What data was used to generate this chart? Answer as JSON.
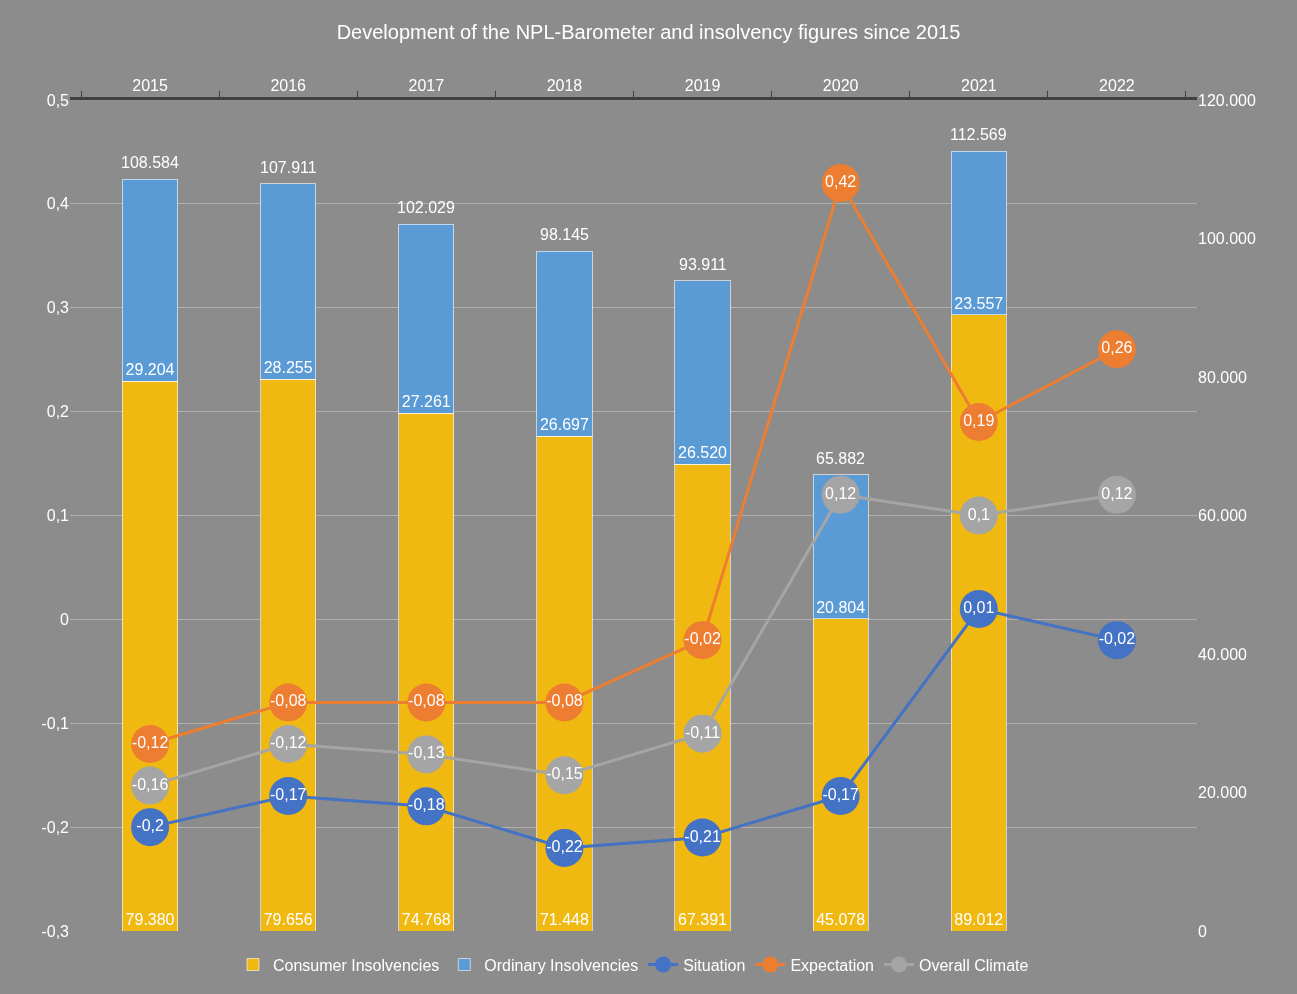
{
  "chart_data": {
    "type": "bar",
    "title": "Development of the NPL-Barometer and insolvency figures since 2015",
    "categories": [
      "2015",
      "2016",
      "2017",
      "2018",
      "2019",
      "2020",
      "2021",
      "2022"
    ],
    "stacked": true,
    "series": [
      {
        "name": "Consumer Insolvencies",
        "axis": "y2",
        "color": "#f0b912",
        "values": [
          79380,
          79656,
          74768,
          71448,
          67391,
          45078,
          89012,
          null
        ],
        "value_labels": [
          "79.380",
          "79.656",
          "74.768",
          "71.448",
          "67.391",
          "45.078",
          "89.012",
          null
        ]
      },
      {
        "name": "Ordinary Insolvencies",
        "axis": "y2",
        "color": "#5b9bd5",
        "values": [
          29204,
          28255,
          27261,
          26697,
          26520,
          20804,
          23557,
          null
        ],
        "value_labels": [
          "29.204",
          "28.255",
          "27.261",
          "26.697",
          "26.520",
          "20.804",
          "23.557",
          null
        ]
      },
      {
        "name": "Situation",
        "type": "line",
        "color": "#4472c4",
        "values": [
          -0.2,
          -0.17,
          -0.18,
          -0.22,
          -0.21,
          -0.17,
          0.01,
          -0.02
        ],
        "value_labels": [
          "-0,2",
          "-0,17",
          "-0,18",
          "-0,22",
          "-0,21",
          "-0,17",
          "0,01",
          "-0,02"
        ]
      },
      {
        "name": "Expectation",
        "type": "line",
        "color": "#ed7d31",
        "values": [
          -0.12,
          -0.08,
          -0.08,
          -0.08,
          -0.02,
          0.42,
          0.19,
          0.26
        ],
        "value_labels": [
          "-0,12",
          "-0,08",
          "-0,08",
          "-0,08",
          "-0,02",
          "0,42",
          "0,19",
          "0,26"
        ]
      },
      {
        "name": "Overall Climate",
        "type": "line",
        "color": "#a5a5a5",
        "values": [
          -0.16,
          -0.12,
          -0.13,
          -0.15,
          -0.11,
          0.12,
          0.1,
          0.12
        ],
        "value_labels": [
          "-0,16",
          "-0,12",
          "-0,13",
          "-0,15",
          "-0,11",
          "0,12",
          "0,1",
          "0,12"
        ]
      }
    ],
    "totals": [
      "108.584",
      "107.911",
      "102.029",
      "98.145",
      "93.911",
      "65.882",
      "112.569",
      null
    ],
    "ylim": [
      -0.3,
      0.5
    ],
    "yticks": [
      {
        "value": -0.3,
        "label": "-0,3"
      },
      {
        "value": -0.2,
        "label": "-0,2"
      },
      {
        "value": -0.1,
        "label": "-0,1"
      },
      0,
      {
        "value": 0.1,
        "label": "0,1"
      },
      {
        "value": 0.2,
        "label": "0,2"
      },
      {
        "value": 0.3,
        "label": "0,3"
      },
      {
        "value": 0.4,
        "label": "0,4"
      },
      {
        "value": 0.5,
        "label": "0,5"
      }
    ],
    "y2lim": [
      0,
      120000
    ],
    "y2ticks": [
      0,
      {
        "value": 20000,
        "label": "20.000"
      },
      {
        "value": 40000,
        "label": "40.000"
      },
      {
        "value": 60000,
        "label": "60.000"
      },
      {
        "value": 80000,
        "label": "80.000"
      },
      {
        "value": 100000,
        "label": "100.000"
      },
      {
        "value": 120000,
        "label": "120.000"
      }
    ],
    "grid": "y",
    "legend": "bottom",
    "marker": "circle",
    "line_style": "solid"
  }
}
